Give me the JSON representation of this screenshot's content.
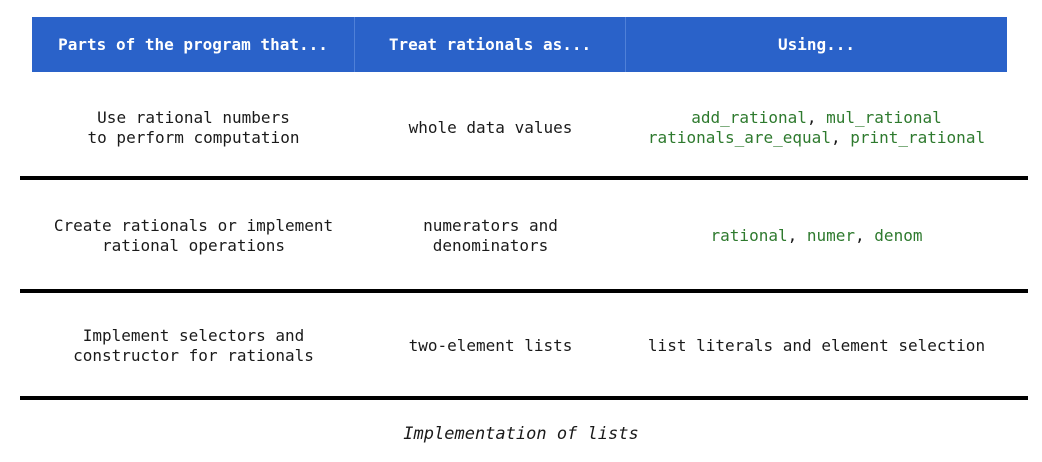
{
  "header": {
    "col1": "Parts of the program that...",
    "col2": "Treat rationals as...",
    "col3": "Using..."
  },
  "rows": [
    {
      "col1": [
        "Use rational numbers",
        "to perform computation"
      ],
      "col2": [
        "whole data values"
      ],
      "col3_lines": [
        [
          {
            "text": "add_rational",
            "code": true
          },
          {
            "text": ", ",
            "code": false
          },
          {
            "text": "mul_rational",
            "code": true
          }
        ],
        [
          {
            "text": "rationals_are_equal",
            "code": true
          },
          {
            "text": ", ",
            "code": false
          },
          {
            "text": "print_rational",
            "code": true
          }
        ]
      ]
    },
    {
      "col1": [
        "Create rationals or implement",
        "rational operations"
      ],
      "col2": [
        "numerators and",
        "denominators"
      ],
      "col3_lines": [
        [
          {
            "text": "rational",
            "code": true
          },
          {
            "text": ", ",
            "code": false
          },
          {
            "text": "numer",
            "code": true
          },
          {
            "text": ", ",
            "code": false
          },
          {
            "text": "denom",
            "code": true
          }
        ]
      ]
    },
    {
      "col1": [
        "Implement selectors and",
        "constructor for rationals"
      ],
      "col2": [
        "two-element lists"
      ],
      "col3_lines": [
        [
          {
            "text": "list literals and element selection",
            "code": false
          }
        ]
      ]
    }
  ],
  "footer": "Implementation of lists",
  "colors": {
    "header_bg": "#2a62c9",
    "function_name": "#2e7a2e",
    "rule": "#000000"
  }
}
